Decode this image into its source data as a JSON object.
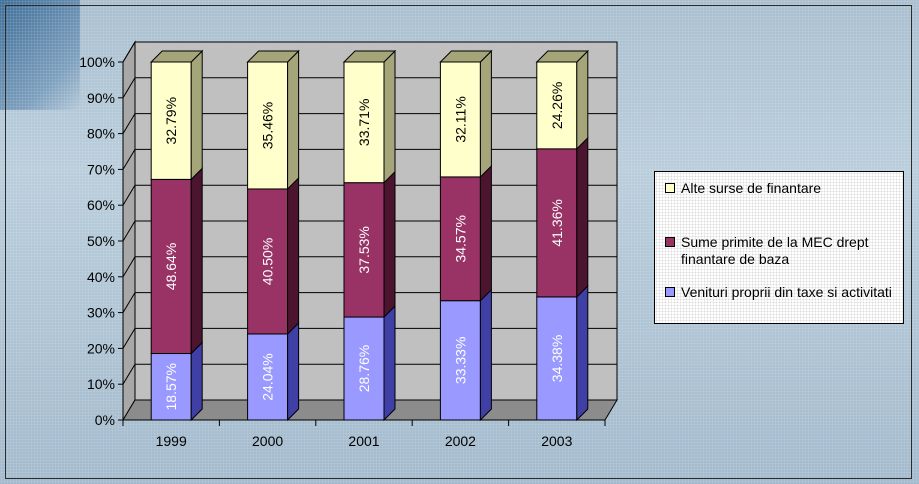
{
  "chart_data": {
    "type": "bar",
    "stacked": true,
    "three_d": true,
    "categories": [
      "1999",
      "2000",
      "2001",
      "2002",
      "2003"
    ],
    "y_ticks": [
      "0%",
      "10%",
      "20%",
      "30%",
      "40%",
      "50%",
      "60%",
      "70%",
      "80%",
      "90%",
      "100%"
    ],
    "ylim": [
      0,
      100
    ],
    "grid": true,
    "legend_position": "right",
    "series": [
      {
        "name": "Venituri proprii din taxe si activitati",
        "values": [
          18.57,
          24.04,
          28.76,
          33.33,
          34.38
        ],
        "labels": [
          "18.57%",
          "24.04%",
          "28.76%",
          "33.33%",
          "34.38%"
        ],
        "color": "#9999ff",
        "side_color": "#3f3fa6",
        "label_light": true
      },
      {
        "name": "Sume primite de la MEC drept finantare de baza",
        "values": [
          48.64,
          40.5,
          37.53,
          34.57,
          41.36
        ],
        "labels": [
          "48.64%",
          "40.50%",
          "37.53%",
          "34.57%",
          "41.36%"
        ],
        "color": "#993366",
        "side_color": "#4b1530",
        "label_light": true
      },
      {
        "name": "Alte surse de finantare",
        "values": [
          32.79,
          35.46,
          33.71,
          32.11,
          24.26
        ],
        "labels": [
          "32.79%",
          "35.46%",
          "33.71%",
          "32.11%",
          "24.26%"
        ],
        "color": "#ffffcc",
        "side_color": "#a5a57a",
        "label_light": false
      }
    ]
  },
  "legend": {
    "items": [
      {
        "label": "Alte surse de finantare",
        "color": "#ffffcc"
      },
      {
        "label": "Sume primite de la MEC drept finantare de baza",
        "color": "#993366"
      },
      {
        "label": "Venituri proprii din taxe si activitati",
        "color": "#9999ff"
      }
    ]
  }
}
